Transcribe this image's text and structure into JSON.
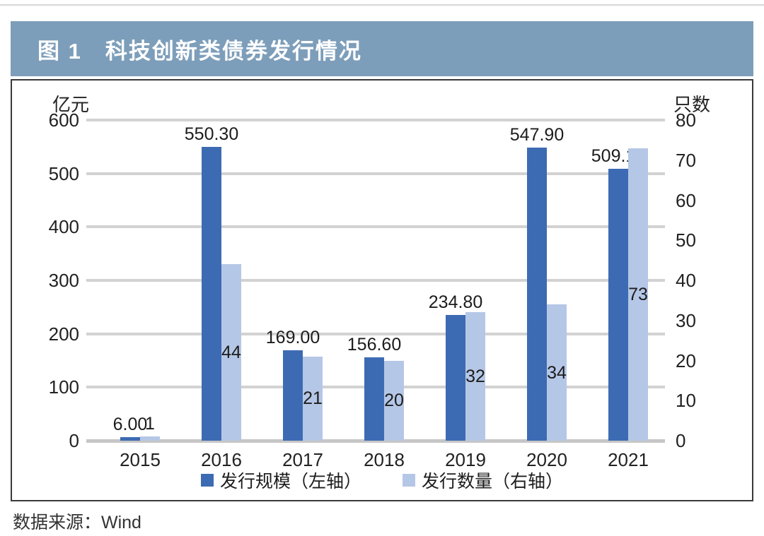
{
  "page": {
    "title": "图 1　科技创新类债券发行情况",
    "source": "数据来源：Wind"
  },
  "theme": {
    "title_bar_bg": "#7d9eba",
    "title_text_color": "#ffffff",
    "grid_color": "#d2d2d2",
    "baseline_color": "#c6c6c6",
    "panel_border_color": "#3a3a3a"
  },
  "chart_data": {
    "type": "bar",
    "title": "图 1　科技创新类债券发行情况",
    "categories": [
      "2015",
      "2016",
      "2017",
      "2018",
      "2019",
      "2020",
      "2021"
    ],
    "series": [
      {
        "name": "发行规模（左轴）",
        "axis": "left",
        "color": "#3d6bb3",
        "values": [
          6.0,
          550.3,
          169.0,
          156.6,
          234.8,
          547.9,
          509.19
        ],
        "labels": [
          "6.00",
          "550.30",
          "169.00",
          "156.60",
          "234.80",
          "547.90",
          "509.19"
        ]
      },
      {
        "name": "发行数量（右轴）",
        "axis": "right",
        "color": "#b5c7e6",
        "values": [
          1,
          44,
          21,
          20,
          32,
          34,
          73
        ],
        "labels": [
          "1",
          "44",
          "21",
          "20",
          "32",
          "34",
          "73"
        ]
      }
    ],
    "left_axis": {
      "label": "亿元",
      "min": 0,
      "max": 600,
      "step": 100
    },
    "right_axis": {
      "label": "只数",
      "min": 0,
      "max": 80,
      "step": 10
    },
    "grid": true,
    "legend_position": "bottom"
  }
}
